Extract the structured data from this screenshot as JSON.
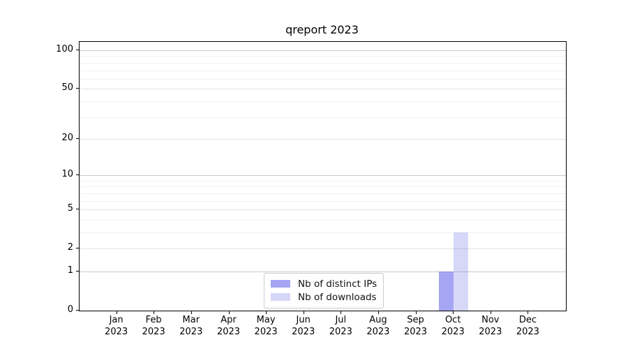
{
  "chart_data": {
    "type": "bar",
    "title": "qreport 2023",
    "xlabel": "",
    "ylabel": "",
    "year": "2023",
    "categories": [
      "Jan",
      "Feb",
      "Mar",
      "Apr",
      "May",
      "Jun",
      "Jul",
      "Aug",
      "Sep",
      "Oct",
      "Nov",
      "Dec"
    ],
    "series": [
      {
        "name": "Nb of distinct IPs",
        "color": "rgba(110,110,235,0.62)",
        "values": [
          0,
          0,
          0,
          0,
          0,
          0,
          0,
          0,
          0,
          1,
          0,
          0
        ]
      },
      {
        "name": "Nb of downloads",
        "color": "rgba(110,110,235,0.28)",
        "values": [
          0,
          0,
          0,
          0,
          0,
          0,
          0,
          0,
          0,
          3,
          0,
          0
        ]
      }
    ],
    "yaxis": {
      "scale": "log1p",
      "ylim": [
        0,
        101
      ],
      "major_ticks": [
        0,
        1,
        2,
        5,
        10,
        20,
        50,
        100
      ],
      "decade_ticks": [
        1,
        10,
        100
      ],
      "minor_ticks": [
        3,
        4,
        6,
        7,
        8,
        9,
        30,
        40,
        60,
        70,
        80,
        90
      ],
      "grid": "on"
    },
    "legend": {
      "position": "lower center",
      "border_color": "#cccccc"
    },
    "colors": {
      "frame": "#000000",
      "grid_decade": "#c9c9c9",
      "grid_major": "#e2e2e2",
      "grid_minor": "#f0f0f0"
    }
  }
}
